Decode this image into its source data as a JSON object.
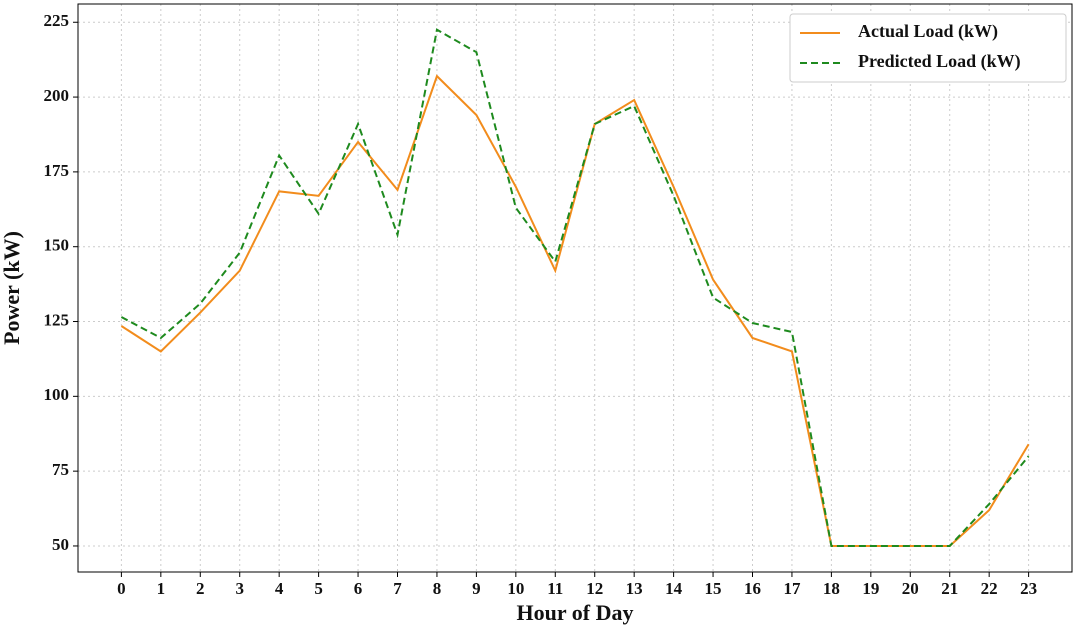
{
  "chart_data": {
    "type": "line",
    "x_label": "Hour of Day",
    "y_label": "Power (kW)",
    "x": [
      0,
      1,
      2,
      3,
      4,
      5,
      6,
      7,
      8,
      9,
      10,
      11,
      12,
      13,
      14,
      15,
      16,
      17,
      18,
      19,
      20,
      21,
      22,
      23
    ],
    "series": [
      {
        "name": "Actual Load (kW)",
        "color": "#f28c1c",
        "dash": "solid",
        "values": [
          123.5,
          115,
          128,
          142,
          168.5,
          167,
          185,
          169,
          207,
          194,
          170,
          142,
          191,
          199,
          170,
          139,
          119.5,
          115,
          50,
          50,
          50,
          50,
          62,
          84
        ]
      },
      {
        "name": "Predicted Load (kW)",
        "color": "#1e8a1e",
        "dash": "dashed",
        "values": [
          126.5,
          119.5,
          131,
          148,
          180.5,
          161,
          191,
          154,
          222.5,
          215,
          163,
          145,
          191,
          197,
          167,
          133,
          124.5,
          121.5,
          50,
          50,
          50,
          50,
          64,
          80
        ]
      }
    ],
    "xlim": [
      -1.1,
      24.1
    ],
    "ylim": [
      41.3,
      231.1
    ],
    "xticks": [
      0,
      1,
      2,
      3,
      4,
      5,
      6,
      7,
      8,
      9,
      10,
      11,
      12,
      13,
      14,
      15,
      16,
      17,
      18,
      19,
      20,
      21,
      22,
      23
    ],
    "yticks": [
      50,
      75,
      100,
      125,
      150,
      175,
      200,
      225
    ],
    "grid": true,
    "legend": "upper right"
  }
}
